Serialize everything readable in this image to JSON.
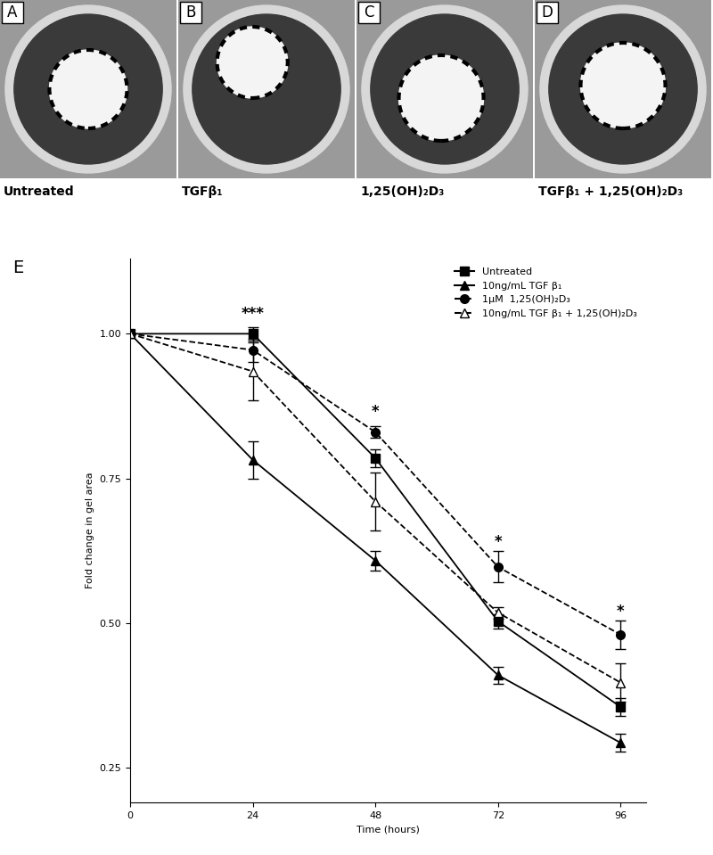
{
  "photos": [
    {
      "letter": "A",
      "label": "Untreated"
    },
    {
      "letter": "B",
      "label": "TGFβ₁"
    },
    {
      "letter": "C",
      "label": "1,25(OH)₂D₃"
    },
    {
      "letter": "D",
      "label": "TGFβ₁ + 1,25(OH)₂D₃"
    }
  ],
  "chart_data": {
    "type": "line",
    "panel": "E",
    "x_label": "Time (hours)",
    "y_label": "Fold change in gel area",
    "x": [
      0,
      24,
      48,
      72,
      96
    ],
    "xlim": [
      0,
      101
    ],
    "xticks": [
      0,
      24,
      48,
      72,
      96
    ],
    "ylim": [
      0.19,
      1.13
    ],
    "yticks": [
      {
        "value": 0.25,
        "label": "0.25"
      },
      {
        "value": 0.5,
        "label": "0.50"
      },
      {
        "value": 0.75,
        "label": "0.75"
      },
      {
        "value": 1.0,
        "label": "1.00"
      }
    ],
    "legend": "upper right",
    "series": [
      {
        "name": "Untreated",
        "color": "#000000",
        "marker": "square",
        "line_style": "solid",
        "values": [
          1.0,
          1.0,
          0.785,
          0.503,
          0.355
        ],
        "errors": [
          0,
          0.012,
          0.015,
          0.012,
          0.015
        ]
      },
      {
        "name": "10ng/mL TGF β₁",
        "color": "#000000",
        "marker": "triangle",
        "line_style": "solid",
        "values": [
          1.0,
          0.782,
          0.608,
          0.41,
          0.293
        ],
        "errors": [
          0,
          0.032,
          0.017,
          0.015,
          0.015
        ]
      },
      {
        "name": "1µM  1,25(OH)₂D₃",
        "color": "#000000",
        "marker": "circle",
        "line_style": "dashed",
        "values": [
          1.0,
          0.972,
          0.83,
          0.597,
          0.48
        ],
        "errors": [
          0,
          0.02,
          0.01,
          0.027,
          0.025
        ]
      },
      {
        "name": "10ng/mL TGF β₁ + 1,25(OH)₂D₃",
        "color": "#000000",
        "marker": "open_triangle",
        "line_style": "dashed",
        "values": [
          1.0,
          0.935,
          0.71,
          0.518,
          0.397
        ],
        "errors": [
          0,
          0.05,
          0.05,
          0.01,
          0.033
        ]
      }
    ],
    "annotations": [
      {
        "x": 24,
        "y": 1.035,
        "text": "***"
      },
      {
        "x": 48,
        "y": 0.865,
        "text": "*"
      },
      {
        "x": 72,
        "y": 0.64,
        "text": "*"
      },
      {
        "x": 96,
        "y": 0.52,
        "text": "*"
      }
    ]
  }
}
